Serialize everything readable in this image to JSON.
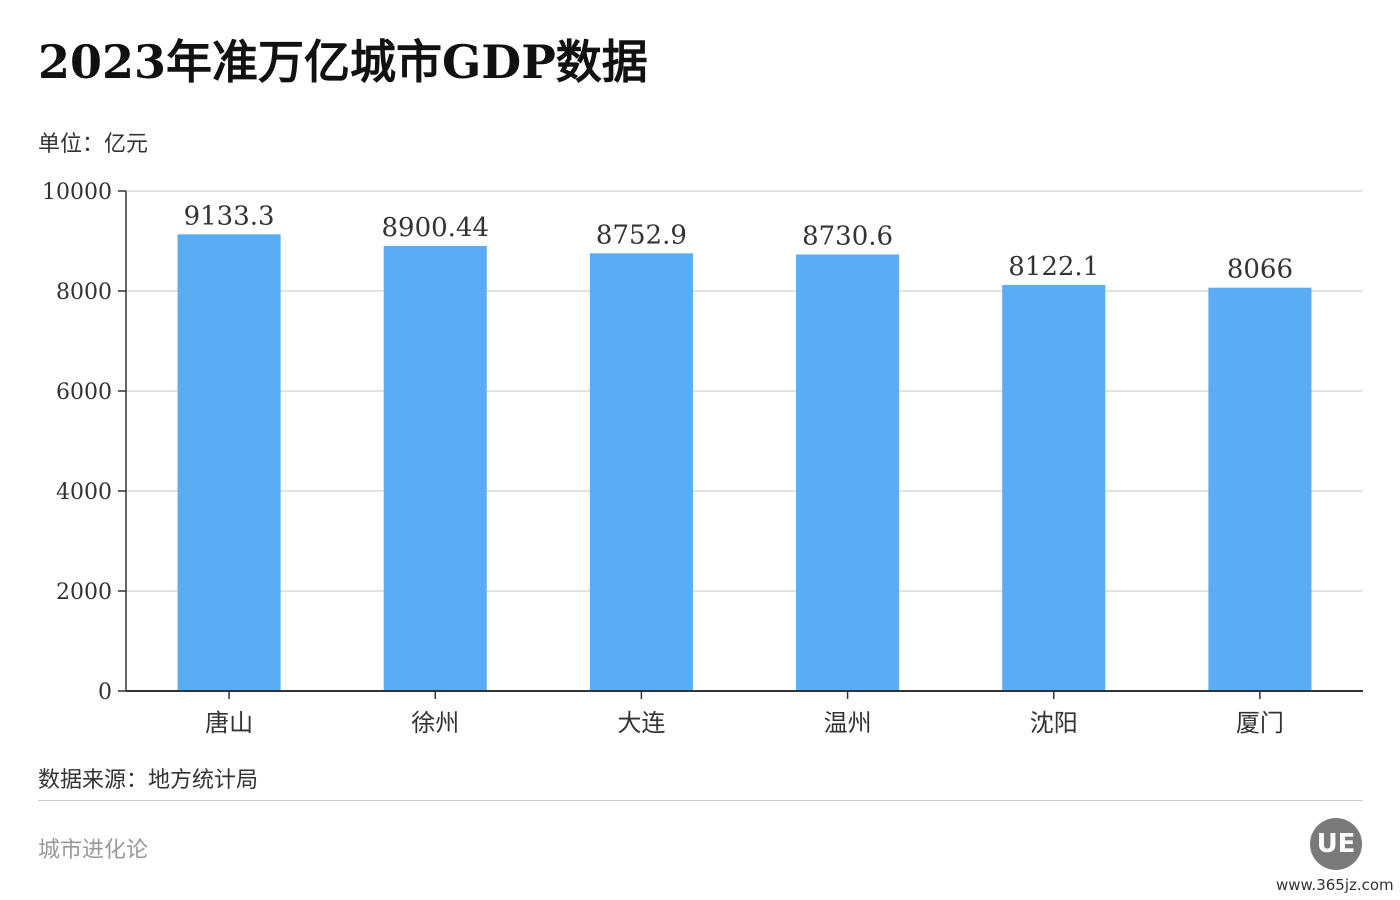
{
  "header": {
    "title": "2023年准万亿城市GDP数据",
    "unit": "单位：亿元"
  },
  "chart_data": {
    "type": "bar",
    "categories": [
      "唐山",
      "徐州",
      "大连",
      "温州",
      "沈阳",
      "厦门"
    ],
    "values": [
      9133.3,
      8900.44,
      8752.9,
      8730.6,
      8122.1,
      8066
    ],
    "value_labels": [
      "9133.3",
      "8900.44",
      "8752.9",
      "8730.6",
      "8122.1",
      "8066"
    ],
    "ylim": [
      0,
      10000
    ],
    "yticks": [
      0,
      2000,
      4000,
      6000,
      8000,
      10000
    ],
    "grid": true,
    "bar_color": "#5badf3",
    "grid_color": "#d9d9d9",
    "axis_color": "#333333"
  },
  "footer": {
    "source": "数据来源：地方统计局",
    "brand": "城市进化论",
    "logo_text": "UE",
    "watermark": "www.365jz.com"
  }
}
